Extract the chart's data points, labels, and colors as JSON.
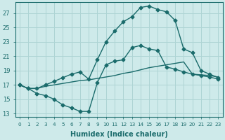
{
  "xlabel": "Humidex (Indice chaleur)",
  "background_color": "#ceeaea",
  "grid_color": "#aed4d4",
  "line_color": "#1a6b6b",
  "xlim": [
    -0.5,
    23.5
  ],
  "ylim": [
    12.5,
    28.5
  ],
  "xticks": [
    0,
    1,
    2,
    3,
    4,
    5,
    6,
    7,
    8,
    9,
    10,
    11,
    12,
    13,
    14,
    15,
    16,
    17,
    18,
    19,
    20,
    21,
    22,
    23
  ],
  "yticks": [
    13,
    15,
    17,
    19,
    21,
    23,
    25,
    27
  ],
  "line1_x": [
    0,
    1,
    2,
    3,
    4,
    5,
    6,
    7,
    8,
    9,
    10,
    11,
    12,
    13,
    14,
    15,
    16,
    17,
    18,
    19,
    20,
    21,
    22,
    23
  ],
  "line1_y": [
    17.0,
    16.5,
    15.8,
    15.5,
    15.0,
    14.2,
    13.8,
    13.3,
    13.3,
    17.3,
    19.8,
    20.3,
    20.5,
    22.2,
    22.5,
    22.0,
    21.8,
    19.5,
    19.2,
    18.8,
    18.5,
    18.3,
    18.1,
    17.8
  ],
  "line2_x": [
    0,
    1,
    2,
    3,
    4,
    5,
    6,
    7,
    8,
    9,
    10,
    11,
    12,
    13,
    14,
    15,
    16,
    17,
    18,
    19,
    20,
    21,
    22,
    23
  ],
  "line2_y": [
    17.0,
    16.5,
    16.5,
    16.8,
    17.0,
    17.2,
    17.4,
    17.6,
    17.7,
    17.9,
    18.1,
    18.3,
    18.6,
    18.8,
    19.1,
    19.4,
    19.6,
    19.8,
    20.0,
    20.2,
    18.5,
    18.4,
    18.3,
    18.1
  ],
  "line3_x": [
    0,
    1,
    2,
    3,
    4,
    5,
    6,
    7,
    8,
    9,
    10,
    11,
    12,
    13,
    14,
    15,
    16,
    17,
    18,
    19,
    20,
    21,
    22,
    23
  ],
  "line3_y": [
    17.0,
    16.5,
    16.5,
    17.0,
    17.5,
    18.0,
    18.5,
    18.8,
    17.8,
    20.5,
    23.0,
    24.5,
    25.8,
    26.5,
    27.8,
    28.0,
    27.5,
    27.2,
    26.0,
    22.0,
    21.5,
    19.0,
    18.5,
    18.0
  ],
  "marker": "D",
  "markersize": 2.5,
  "linewidth": 1.0
}
